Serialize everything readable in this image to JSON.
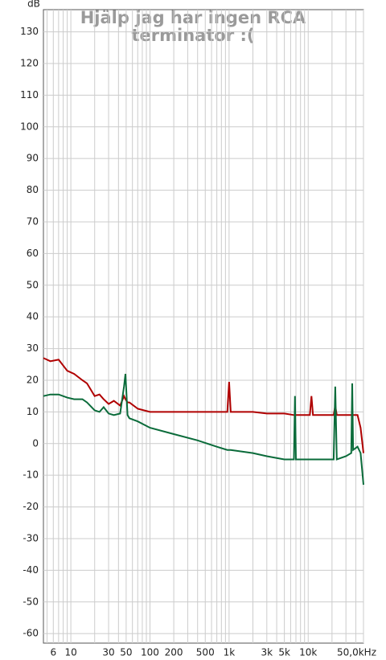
{
  "chart_data": {
    "type": "line",
    "title": [
      "Hjälp jag har ingen RCA",
      "terminator :("
    ],
    "y_label": "dB",
    "log_x": true,
    "grid": true,
    "xlim": [
      4.5,
      50000
    ],
    "ylim": [
      -63,
      137
    ],
    "xticks": [
      6,
      10,
      30,
      50,
      100,
      200,
      500,
      {
        "value": 1000,
        "label": "1k"
      },
      {
        "value": 3000,
        "label": "3k"
      },
      {
        "value": 5000,
        "label": "5k"
      },
      {
        "value": 10000,
        "label": "10k"
      },
      {
        "value": 50000,
        "label": "50,0kHz"
      }
    ],
    "xgrid": [
      5,
      6,
      7,
      8,
      9,
      10,
      20,
      30,
      40,
      50,
      60,
      70,
      80,
      90,
      100,
      200,
      300,
      400,
      500,
      600,
      700,
      800,
      900,
      1000,
      2000,
      3000,
      4000,
      5000,
      6000,
      7000,
      8000,
      9000,
      10000,
      20000,
      30000,
      40000,
      50000
    ],
    "yticks": [
      -60,
      -50,
      -40,
      -30,
      -20,
      -10,
      0,
      10,
      20,
      30,
      40,
      50,
      60,
      70,
      80,
      90,
      100,
      110,
      120,
      130
    ],
    "x": [
      4.5,
      5.5,
      7,
      9,
      11,
      14,
      16,
      20,
      23,
      26,
      30,
      35,
      42,
      47,
      49,
      52,
      55,
      70,
      100,
      200,
      400,
      700,
      950,
      1000,
      1050,
      2000,
      3000,
      5000,
      6600,
      6800,
      7000,
      8000,
      10500,
      11000,
      11500,
      15000,
      21000,
      22000,
      23000,
      30000,
      35000,
      36000,
      37000,
      42000,
      46000,
      50000
    ],
    "series": [
      {
        "color": "#b00000",
        "values": [
          27,
          26,
          26.5,
          23,
          22,
          20,
          19,
          15,
          15.5,
          14,
          12.5,
          13.5,
          12,
          15,
          14,
          13,
          13,
          11,
          10,
          10,
          10,
          10,
          10,
          19.5,
          10,
          10,
          9.5,
          9.5,
          9,
          9,
          9,
          9,
          9,
          15,
          9,
          9,
          9,
          12,
          9,
          9,
          9,
          9,
          9,
          9,
          5,
          -3
        ]
      },
      {
        "color": "#0a6b3a",
        "values": [
          15,
          15.5,
          15.5,
          14.5,
          14,
          14,
          13,
          10.5,
          10,
          11.5,
          9.5,
          9,
          9.5,
          18,
          22,
          9,
          8,
          7,
          5,
          3,
          1,
          -1,
          -2,
          -2,
          -2,
          -3,
          -4,
          -5,
          -5,
          15,
          -5,
          -5,
          -5,
          -5,
          -5,
          -5,
          -5,
          18,
          -5,
          -4,
          -3,
          19,
          -2,
          -1,
          -3,
          -13
        ]
      }
    ]
  }
}
